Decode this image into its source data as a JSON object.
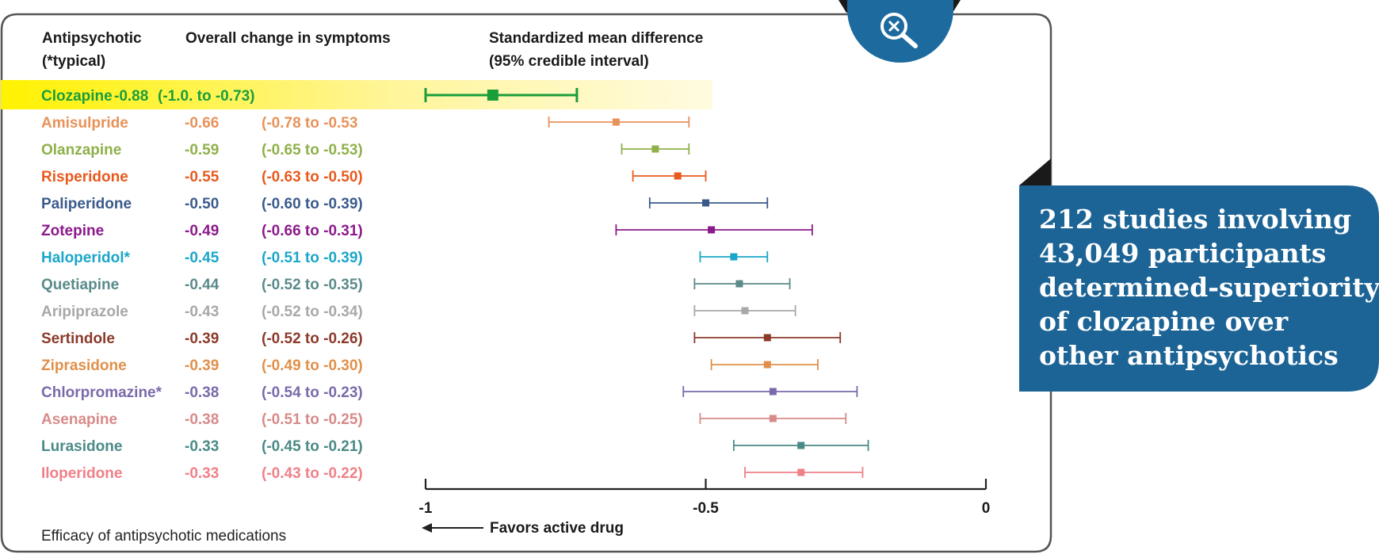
{
  "headers": {
    "drug_line1": "Antipsychotic",
    "drug_line2": "(*typical)",
    "change": "Overall change in symptoms",
    "smd_line1": "Standardized mean difference",
    "smd_line2": "(95% credible interval)"
  },
  "caption": "Efficacy of antipsychotic medications",
  "callout": {
    "lines": [
      "212 studies involving",
      "43,049 participants",
      "determined-superiority",
      "of clozapine over",
      "other antipsychotics"
    ]
  },
  "icons": {
    "zoom": "zoom-out-magnifier-icon"
  },
  "colors": {
    "callout_bg": "#1d6496",
    "highlight": "#fff200",
    "frame": "#555555"
  },
  "chart_data": {
    "type": "forest",
    "xlim": [
      -1,
      0
    ],
    "xticks": [
      -1,
      -0.5,
      0
    ],
    "xtick_labels": [
      "-1",
      "-0.5",
      "0"
    ],
    "axis_annotation": "Favors active drug",
    "rows": [
      {
        "drug": "Clozapine",
        "value": -0.88,
        "low": -1.0,
        "high": -0.73,
        "value_text": "-0.88",
        "ci_text": "(-1.0. to -0.73)",
        "color": "#1a9e3a",
        "highlight": true
      },
      {
        "drug": "Amisulpride",
        "value": -0.66,
        "low": -0.78,
        "high": -0.53,
        "value_text": "-0.66",
        "ci_text": "(-0.78 to -0.53",
        "color": "#e8925a"
      },
      {
        "drug": "Olanzapine",
        "value": -0.59,
        "low": -0.65,
        "high": -0.53,
        "value_text": "-0.59",
        "ci_text": "(-0.65 to -0.53)",
        "color": "#8fb04a"
      },
      {
        "drug": "Risperidone",
        "value": -0.55,
        "low": -0.63,
        "high": -0.5,
        "value_text": "-0.55",
        "ci_text": "(-0.63 to -0.50)",
        "color": "#e85a1e"
      },
      {
        "drug": "Paliperidone",
        "value": -0.5,
        "low": -0.6,
        "high": -0.39,
        "value_text": "-0.50",
        "ci_text": "(-0.60 to -0.39)",
        "color": "#3b5a8c"
      },
      {
        "drug": "Zotepine",
        "value": -0.49,
        "low": -0.66,
        "high": -0.31,
        "value_text": "-0.49",
        "ci_text": "(-0.66 to -0.31)",
        "color": "#8b1a8b"
      },
      {
        "drug": "Haloperidol*",
        "value": -0.45,
        "low": -0.51,
        "high": -0.39,
        "value_text": "-0.45",
        "ci_text": "(-0.51 to -0.39)",
        "color": "#1aa6c8"
      },
      {
        "drug": "Quetiapine",
        "value": -0.44,
        "low": -0.52,
        "high": -0.35,
        "value_text": "-0.44",
        "ci_text": "(-0.52 to -0.35)",
        "color": "#5a8a8a"
      },
      {
        "drug": "Aripiprazole",
        "value": -0.43,
        "low": -0.52,
        "high": -0.34,
        "value_text": "-0.43",
        "ci_text": "(-0.52 to -0.34)",
        "color": "#a8a8a8"
      },
      {
        "drug": "Sertindole",
        "value": -0.39,
        "low": -0.52,
        "high": -0.26,
        "value_text": "-0.39",
        "ci_text": "(-0.52 to -0.26)",
        "color": "#8b3a2a"
      },
      {
        "drug": "Ziprasidone",
        "value": -0.39,
        "low": -0.49,
        "high": -0.3,
        "value_text": "-0.39",
        "ci_text": "(-0.49 to -0.30)",
        "color": "#e0904a"
      },
      {
        "drug": "Chlorpromazine*",
        "value": -0.38,
        "low": -0.54,
        "high": -0.23,
        "value_text": "-0.38",
        "ci_text": "(-0.54 to -0.23)",
        "color": "#7a6aaa"
      },
      {
        "drug": "Asenapine",
        "value": -0.38,
        "low": -0.51,
        "high": -0.25,
        "value_text": "-0.38",
        "ci_text": "(-0.51 to -0.25)",
        "color": "#d88a8a"
      },
      {
        "drug": "Lurasidone",
        "value": -0.33,
        "low": -0.45,
        "high": -0.21,
        "value_text": "-0.33",
        "ci_text": "(-0.45 to -0.21)",
        "color": "#4a8a86"
      },
      {
        "drug": "Iloperidone",
        "value": -0.33,
        "low": -0.43,
        "high": -0.22,
        "value_text": "-0.33",
        "ci_text": "(-0.43 to -0.22)",
        "color": "#f08088"
      }
    ]
  }
}
